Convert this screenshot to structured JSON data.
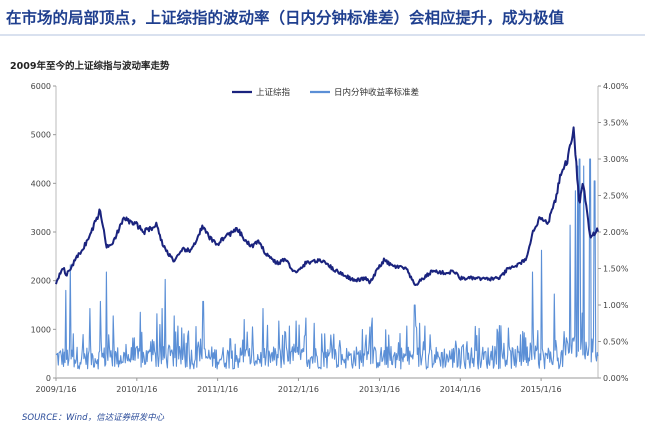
{
  "headline": "在市场的局部顶点，上证综指的波动率（日内分钟标准差）会相应提升，成为极值",
  "source": "SOURCE：Wind，信达证券研发中心",
  "chart_data": {
    "type": "line",
    "title": "2009年至今的上证综指与波动率走势",
    "x_ticks": [
      "2009/1/16",
      "2010/1/16",
      "2011/1/16",
      "2012/1/16",
      "2013/1/16",
      "2014/1/16",
      "2015/1/16"
    ],
    "x_range": [
      "2009/1/16",
      "2015/9/30"
    ],
    "y_left": {
      "min": 0,
      "max": 6000,
      "ticks": [
        "0",
        "1000",
        "2000",
        "3000",
        "4000",
        "5000",
        "6000"
      ]
    },
    "y_right": {
      "min": 0,
      "max": 0.04,
      "ticks": [
        "0.00%",
        "0.50%",
        "1.00%",
        "1.50%",
        "2.00%",
        "2.50%",
        "3.00%",
        "3.50%",
        "4.00%"
      ]
    },
    "legend_placement": "top-center",
    "grid": false,
    "series": [
      {
        "name": "上证综指",
        "axis": "left",
        "color": "#1a237e",
        "points": [
          [
            "2009/1/16",
            1950
          ],
          [
            "2009/2/16",
            2300
          ],
          [
            "2009/3/3",
            2100
          ],
          [
            "2009/4/16",
            2450
          ],
          [
            "2009/5/16",
            2650
          ],
          [
            "2009/6/16",
            2900
          ],
          [
            "2009/7/16",
            3250
          ],
          [
            "2009/8/4",
            3450
          ],
          [
            "2009/8/31",
            2700
          ],
          [
            "2009/9/30",
            2800
          ],
          [
            "2009/11/23",
            3300
          ],
          [
            "2009/12/16",
            3200
          ],
          [
            "2010/1/16",
            3150
          ],
          [
            "2010/2/16",
            3000
          ],
          [
            "2010/4/16",
            3150
          ],
          [
            "2010/5/16",
            2700
          ],
          [
            "2010/7/5",
            2400
          ],
          [
            "2010/8/16",
            2650
          ],
          [
            "2010/9/16",
            2600
          ],
          [
            "2010/11/8",
            3100
          ],
          [
            "2010/12/16",
            2850
          ],
          [
            "2011/1/16",
            2750
          ],
          [
            "2011/2/16",
            2900
          ],
          [
            "2011/4/16",
            3050
          ],
          [
            "2011/5/16",
            2850
          ],
          [
            "2011/6/16",
            2700
          ],
          [
            "2011/7/16",
            2800
          ],
          [
            "2011/8/16",
            2600
          ],
          [
            "2011/9/16",
            2450
          ],
          [
            "2011/10/16",
            2350
          ],
          [
            "2011/11/16",
            2450
          ],
          [
            "2011/12/16",
            2250
          ],
          [
            "2012/1/6",
            2150
          ],
          [
            "2012/2/16",
            2350
          ],
          [
            "2012/3/16",
            2400
          ],
          [
            "2012/5/16",
            2400
          ],
          [
            "2012/6/16",
            2250
          ],
          [
            "2012/8/16",
            2100
          ],
          [
            "2012/9/26",
            2000
          ],
          [
            "2012/11/16",
            2050
          ],
          [
            "2012/12/4",
            1950
          ],
          [
            "2013/1/16",
            2300
          ],
          [
            "2013/2/6",
            2420
          ],
          [
            "2013/3/16",
            2300
          ],
          [
            "2013/5/16",
            2250
          ],
          [
            "2013/6/25",
            1900
          ],
          [
            "2013/8/16",
            2100
          ],
          [
            "2013/9/12",
            2200
          ],
          [
            "2013/11/16",
            2150
          ],
          [
            "2013/12/16",
            2200
          ],
          [
            "2014/1/16",
            2050
          ],
          [
            "2014/3/16",
            2050
          ],
          [
            "2014/5/16",
            2030
          ],
          [
            "2014/7/16",
            2060
          ],
          [
            "2014/8/16",
            2230
          ],
          [
            "2014/10/16",
            2350
          ],
          [
            "2014/11/16",
            2500
          ],
          [
            "2014/12/16",
            3100
          ],
          [
            "2015/1/16",
            3300
          ],
          [
            "2015/2/16",
            3200
          ],
          [
            "2015/3/16",
            3550
          ],
          [
            "2015/4/16",
            4200
          ],
          [
            "2015/5/16",
            4500
          ],
          [
            "2015/6/12",
            5150
          ],
          [
            "2015/7/8",
            3550
          ],
          [
            "2015/7/24",
            4050
          ],
          [
            "2015/8/26",
            2900
          ],
          [
            "2015/9/30",
            3050
          ]
        ]
      },
      {
        "name": "日内分钟收益率标准差",
        "axis": "right",
        "color": "#5b8fd6",
        "baseline": 0.0035,
        "spikes": [
          [
            "2009/3/2",
            0.012
          ],
          [
            "2009/3/21",
            0.0155
          ],
          [
            "2009/6/18",
            0.0095
          ],
          [
            "2009/8/4",
            0.0105
          ],
          [
            "2009/8/31",
            0.0145
          ],
          [
            "2009/10/1",
            0.0085
          ],
          [
            "2010/2/1",
            0.009
          ],
          [
            "2010/4/16",
            0.0088
          ],
          [
            "2010/5/10",
            0.0095
          ],
          [
            "2010/5/25",
            0.0135
          ],
          [
            "2010/7/3",
            0.0085
          ],
          [
            "2010/11/12",
            0.0105
          ],
          [
            "2011/5/16",
            0.008
          ],
          [
            "2011/8/8",
            0.0095
          ],
          [
            "2011/10/20",
            0.0078
          ],
          [
            "2012/1/5",
            0.0078
          ],
          [
            "2012/2/20",
            0.0082
          ],
          [
            "2012/3/28",
            0.0075
          ],
          [
            "2012/12/14",
            0.0082
          ],
          [
            "2013/6/24",
            0.01
          ],
          [
            "2013/7/15",
            0.0075
          ],
          [
            "2014/4/10",
            0.0068
          ],
          [
            "2014/12/9",
            0.0145
          ],
          [
            "2015/1/19",
            0.0175
          ],
          [
            "2015/3/16",
            0.0115
          ],
          [
            "2015/5/28",
            0.0155
          ],
          [
            "2015/6/20",
            0.019
          ],
          [
            "2015/7/1",
            0.0215
          ],
          [
            "2015/7/9",
            0.0265
          ],
          [
            "2015/7/28",
            0.0215
          ],
          [
            "2015/8/24",
            0.022
          ],
          [
            "2015/8/25",
            0.0265
          ],
          [
            "2015/9/15",
            0.02
          ]
        ]
      }
    ]
  }
}
